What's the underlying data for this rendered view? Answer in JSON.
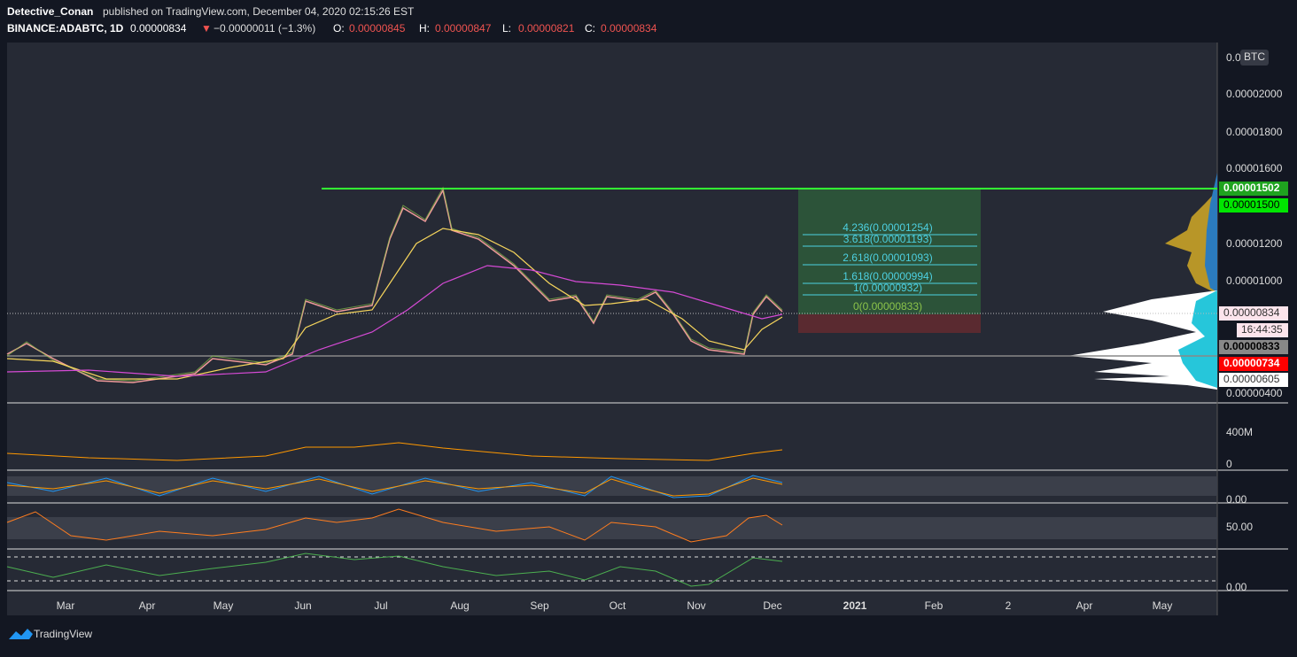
{
  "header": {
    "author": "Detective_Conan",
    "published": "published on TradingView.com, December 04, 2020 02:15:26 EST",
    "symbol": "BINANCE:ADABTC, 1D",
    "last": "0.00000834",
    "arrow": "▼",
    "change": "−0.00000011 (−1.3%)",
    "ohlc": [
      {
        "label": "O:",
        "value": "0.00000845"
      },
      {
        "label": "H:",
        "value": "0.00000847"
      },
      {
        "label": "L:",
        "value": "0.00000821"
      },
      {
        "label": "C:",
        "value": "0.00000834"
      }
    ]
  },
  "price_axis": {
    "currency": "BTC",
    "top_label": "0.0",
    "labels": [
      "0.00002000",
      "0.00001800",
      "0.00001600",
      "0.00001200",
      "0.00001000",
      "0.00000400"
    ],
    "tags": [
      "0.00001502",
      "0.00001500",
      "0.00000834",
      "16:44:35",
      "0.00000833",
      "0.00000734",
      "0.00000605"
    ]
  },
  "fib_labels": [
    "4.236(0.00001254)",
    "3.618(0.00001193)",
    "2.618(0.00001093)",
    "1.618(0.00000994)",
    "1(0.00000932)",
    "0(0.00000833)"
  ],
  "indicator_labels": [
    "400M",
    "0",
    "0.00",
    "50.00",
    "0.00"
  ],
  "time_axis": [
    "Mar",
    "Apr",
    "May",
    "Jun",
    "Jul",
    "Aug",
    "Sep",
    "Oct",
    "Nov",
    "Dec",
    "2021",
    "Feb",
    "2",
    "Apr",
    "May"
  ],
  "footer": {
    "brand": "TradingView"
  }
}
